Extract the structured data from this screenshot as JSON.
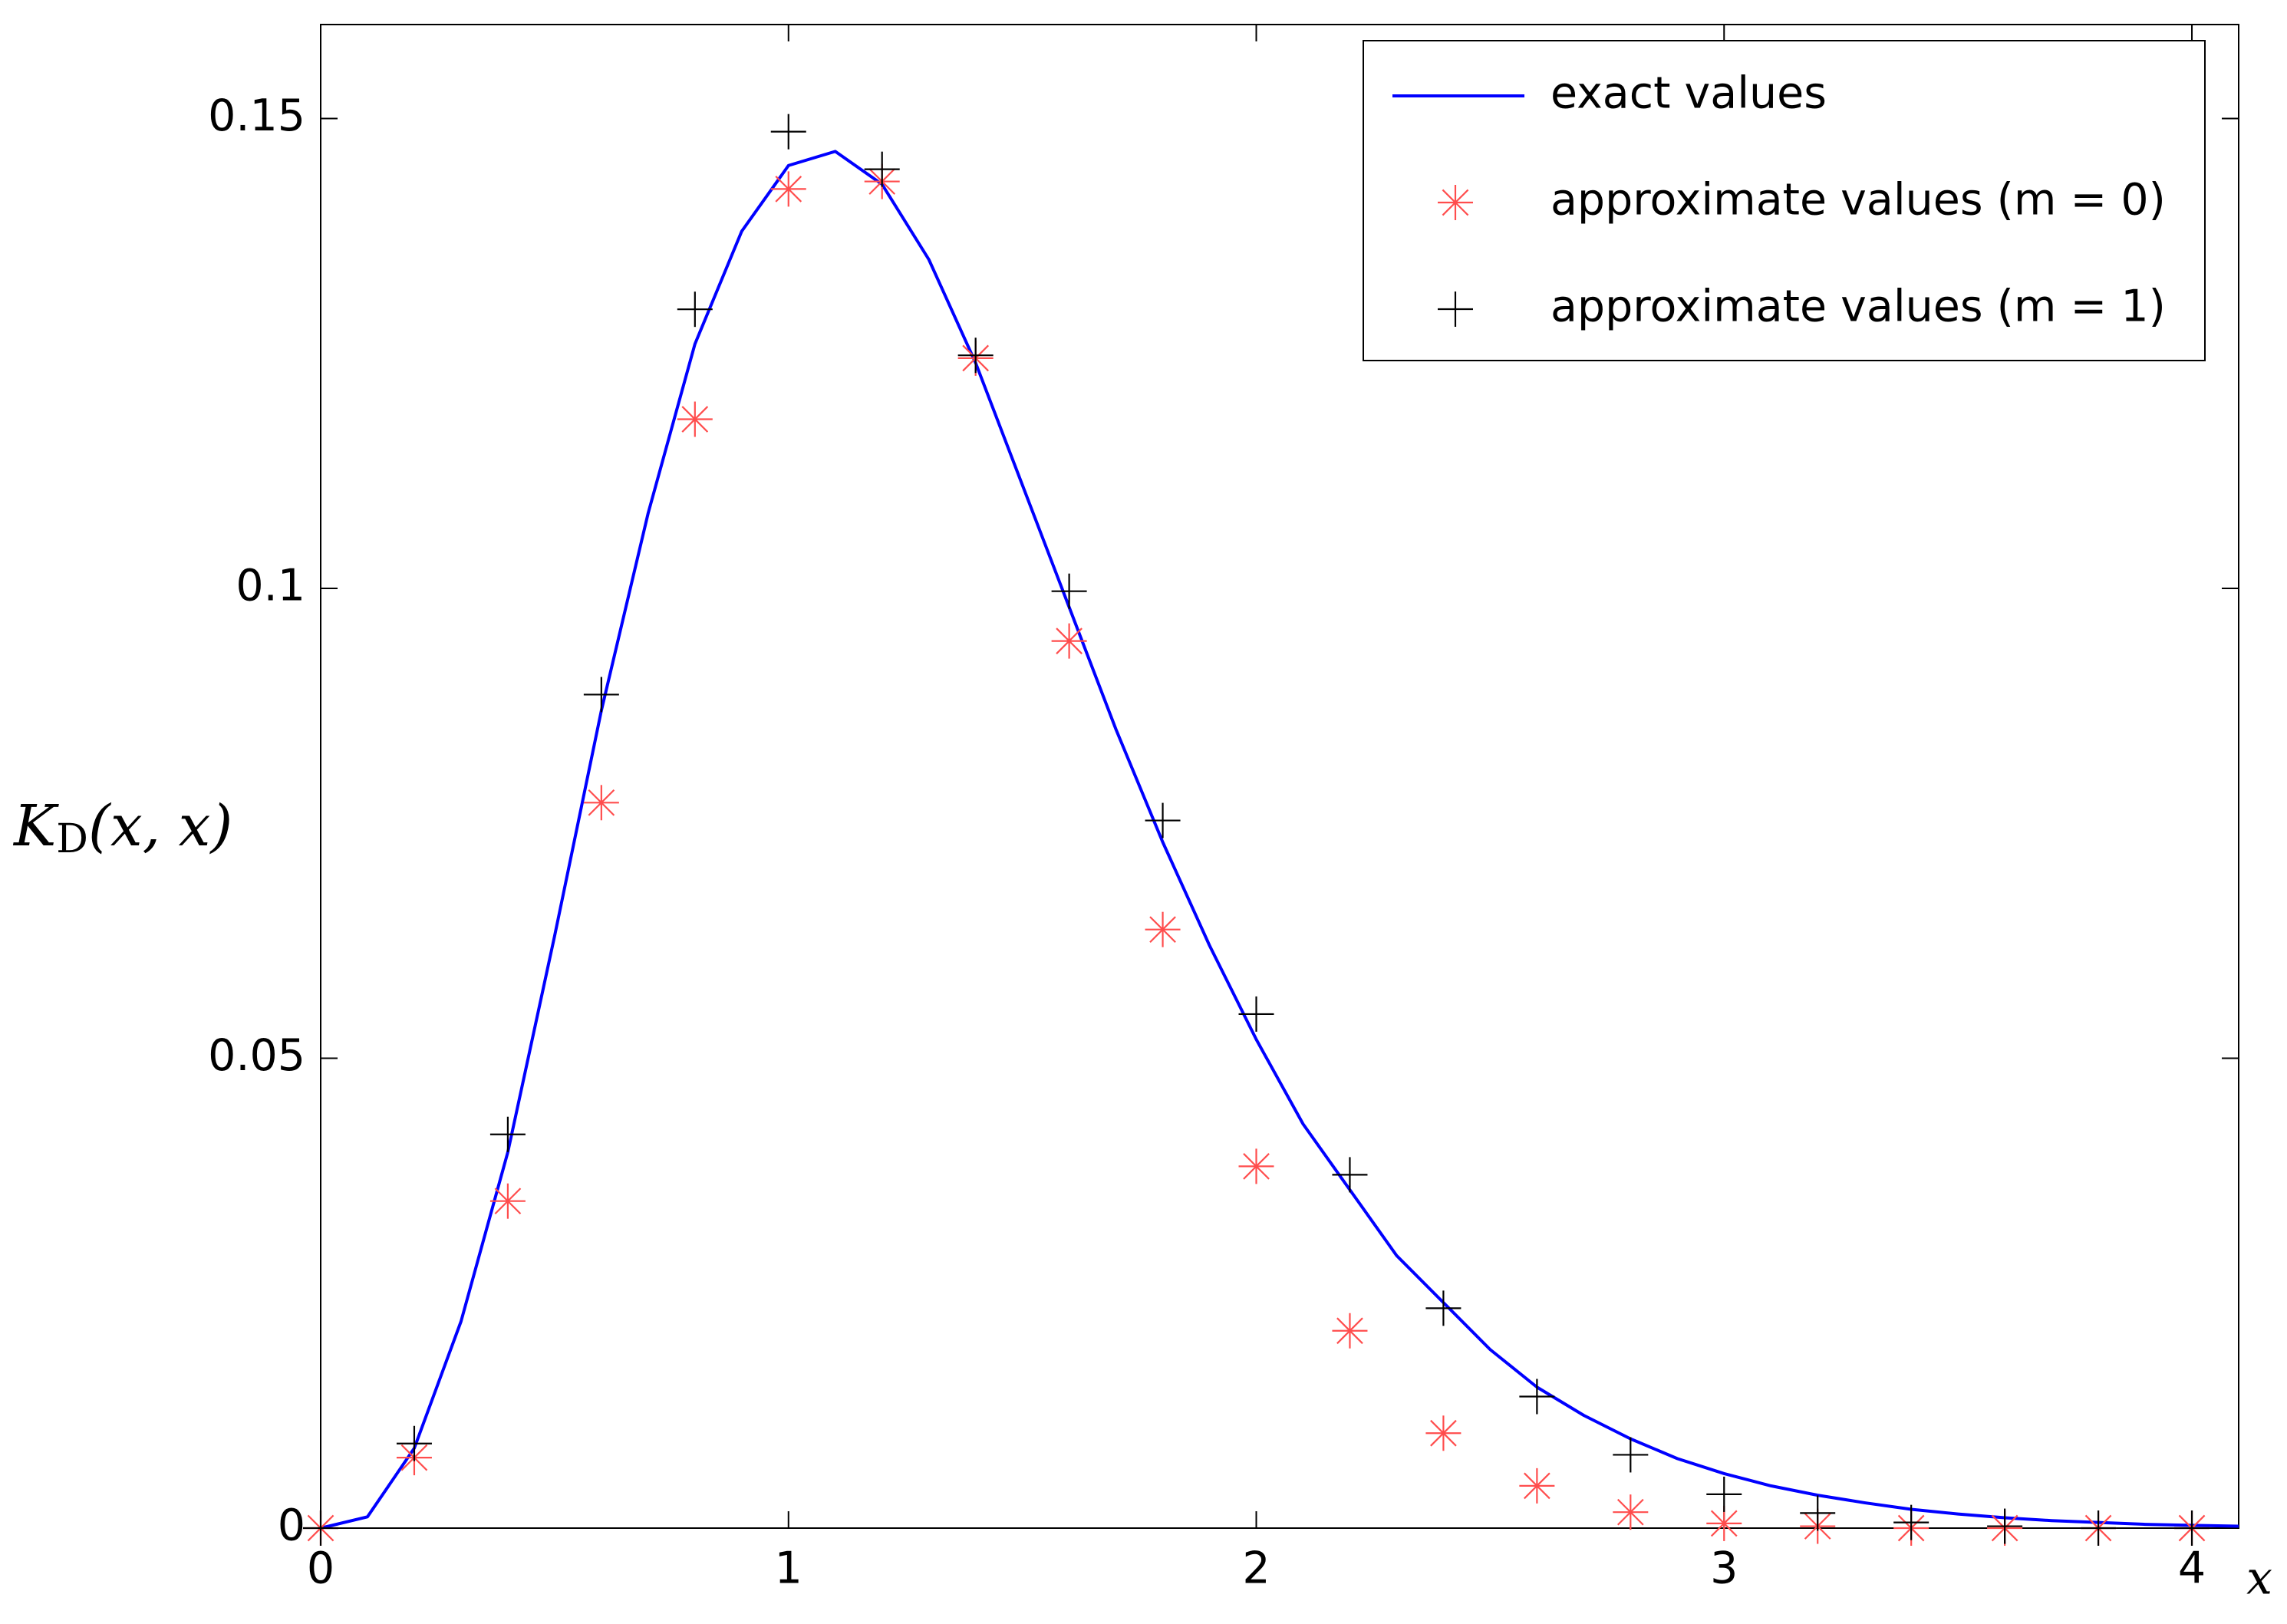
{
  "chart_data": {
    "type": "line",
    "x_label": "x",
    "y_label": [
      "K",
      "D",
      "(x, x)"
    ],
    "xlim": [
      0,
      4.1
    ],
    "ylim": [
      0,
      0.16
    ],
    "xticks": [
      0,
      1,
      2,
      3,
      4
    ],
    "yticks": [
      0,
      0.05,
      0.1,
      0.15
    ],
    "grid": false,
    "legend": "upper right",
    "series": [
      {
        "name": "exact values",
        "color": "#0000ff",
        "marker": "none",
        "x": [
          0,
          0.1,
          0.2,
          0.3,
          0.4,
          0.5,
          0.6,
          0.7,
          0.8,
          0.9,
          1.0,
          1.1,
          1.2,
          1.3,
          1.4,
          1.5,
          1.6,
          1.7,
          1.8,
          1.9,
          2.0,
          2.1,
          2.2,
          2.3,
          2.4,
          2.5,
          2.6,
          2.7,
          2.8,
          2.9,
          3.0,
          3.1,
          3.2,
          3.3,
          3.4,
          3.5,
          3.6,
          3.7,
          3.8,
          3.9,
          4.0,
          4.1
        ],
        "values": [
          0,
          0.0012,
          0.0085,
          0.022,
          0.04,
          0.063,
          0.087,
          0.108,
          0.126,
          0.138,
          0.145,
          0.1465,
          0.143,
          0.135,
          0.124,
          0.111,
          0.098,
          0.085,
          0.073,
          0.062,
          0.052,
          0.043,
          0.036,
          0.029,
          0.024,
          0.019,
          0.015,
          0.012,
          0.0095,
          0.0074,
          0.0058,
          0.0045,
          0.0035,
          0.0027,
          0.002,
          0.0015,
          0.0011,
          0.0008,
          0.0006,
          0.0004,
          0.0003,
          0.0002
        ]
      },
      {
        "name": "approximate values (m = 0)",
        "color": "#ff4d4d",
        "marker": "asterisk",
        "x": [
          0,
          0.2,
          0.4,
          0.6,
          0.8,
          1.0,
          1.2,
          1.4,
          1.6,
          1.8,
          2.0,
          2.2,
          2.4,
          2.6,
          2.8,
          3.0,
          3.2,
          3.4,
          3.6,
          3.8,
          4.0
        ],
        "values": [
          0,
          0.0075,
          0.0348,
          0.0772,
          0.118,
          0.1425,
          0.1433,
          0.1245,
          0.0944,
          0.0637,
          0.0385,
          0.021,
          0.0101,
          0.0045,
          0.0017,
          0.0005,
          0.0002,
          0,
          0,
          0,
          0
        ]
      },
      {
        "name": "approximate values (m = 1)",
        "color": "#000000",
        "marker": "plus",
        "x": [
          0,
          0.2,
          0.4,
          0.6,
          0.8,
          1.0,
          1.2,
          1.4,
          1.6,
          1.8,
          2.0,
          2.2,
          2.4,
          2.6,
          2.8,
          3.0,
          3.2,
          3.4,
          3.6,
          3.8,
          4.0
        ],
        "values": [
          0,
          0.009,
          0.0419,
          0.0887,
          0.1297,
          0.1486,
          0.1446,
          0.1248,
          0.0997,
          0.0753,
          0.0547,
          0.0376,
          0.0234,
          0.014,
          0.0078,
          0.0036,
          0.0016,
          0.0006,
          0.0002,
          0,
          0
        ]
      }
    ]
  }
}
